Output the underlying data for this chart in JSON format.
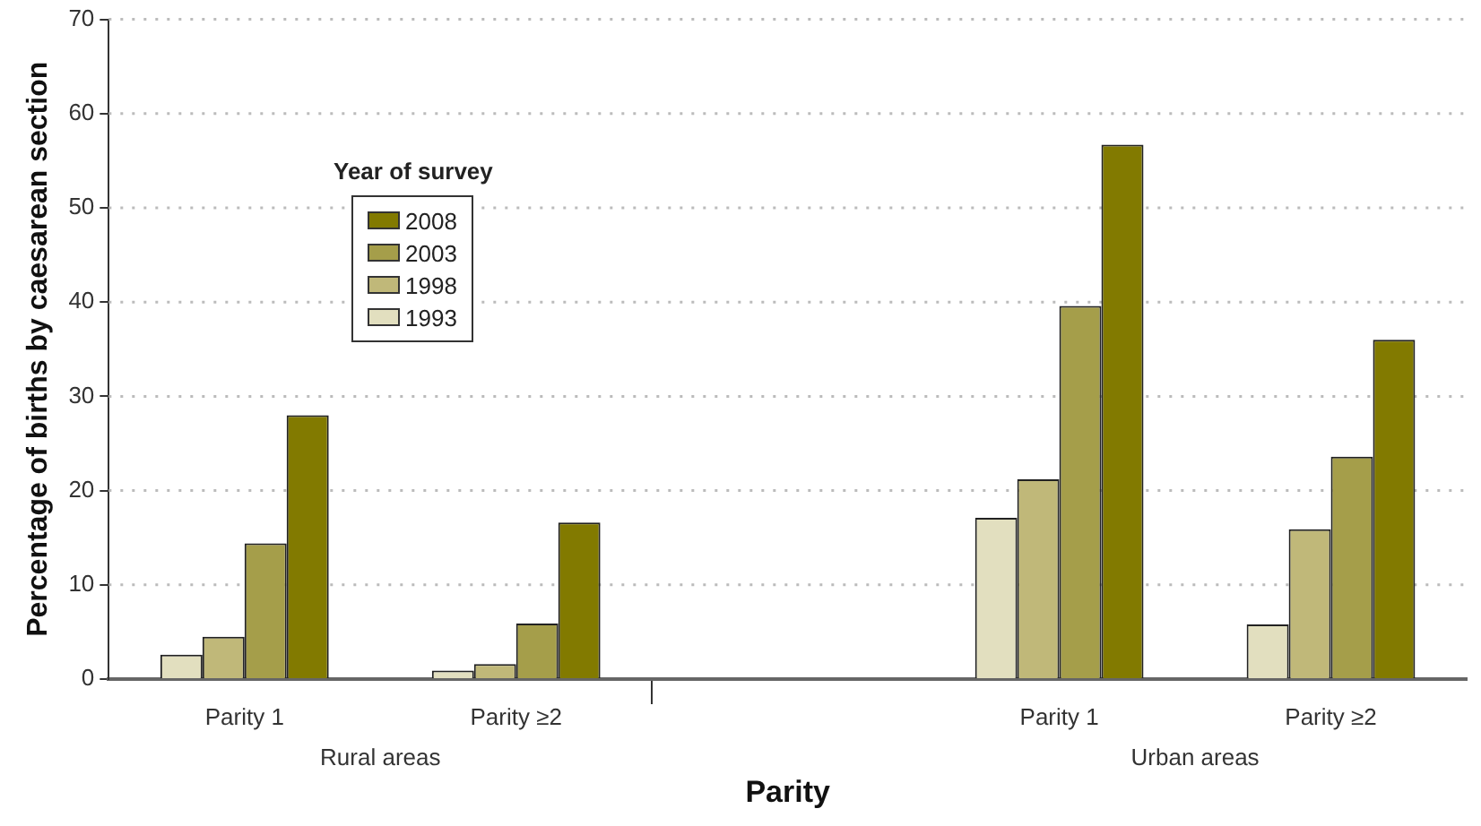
{
  "chart_data": {
    "type": "bar",
    "xlabel": "Parity",
    "ylabel": "Percentage of births by caesarean section",
    "legend_title": "Year of survey",
    "legend": "top left",
    "grid": "y",
    "categories": [
      "Parity 1",
      "Parity ≥2",
      null,
      "Parity 1",
      "Parity ≥2"
    ],
    "series": [
      {
        "name": "1993",
        "color": "#e2dfbf",
        "values": [
          2.6,
          0.9,
          null,
          17.1,
          5.8
        ]
      },
      {
        "name": "1998",
        "color": "#c0b879",
        "values": [
          4.5,
          1.6,
          null,
          21.2,
          15.9
        ]
      },
      {
        "name": "2003",
        "color": "#a59e4a",
        "values": [
          14.4,
          5.9,
          null,
          39.6,
          23.6
        ]
      },
      {
        "name": "2008",
        "color": "#827a00",
        "values": [
          28,
          16.6,
          null,
          56.7,
          36
        ]
      }
    ],
    "ylim": [
      0,
      70
    ],
    "yticks": [
      0,
      10,
      20,
      30,
      40,
      50,
      60,
      70
    ],
    "annotations": [
      "Rural areas",
      "Urban areas"
    ]
  }
}
